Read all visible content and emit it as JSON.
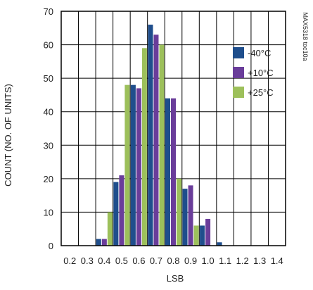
{
  "chart_data": {
    "type": "bar",
    "title": "",
    "xlabel": "LSB",
    "ylabel": "COUNT (NO. OF UNITS)",
    "reference_label": "MAX5318 toc10a",
    "ylim": [
      0,
      70
    ],
    "yticks": [
      0,
      10,
      20,
      30,
      40,
      50,
      60,
      70
    ],
    "categories": [
      "0.2",
      "0.3",
      "0.4",
      "0.5",
      "0.6",
      "0.7",
      "0.8",
      "0.9",
      "1.0",
      "1.1",
      "1.2",
      "1.3",
      "1.4"
    ],
    "grid": true,
    "legend_position": "right",
    "series": [
      {
        "name": "-40°C",
        "color": "#1f4e8c",
        "values": [
          0,
          0,
          2,
          19,
          48,
          66,
          44,
          17,
          6,
          1,
          0,
          0,
          0
        ]
      },
      {
        "name": "+10°C",
        "color": "#6a3d9a",
        "values": [
          0,
          0,
          2,
          21,
          47,
          63,
          44,
          18,
          8,
          0,
          0,
          0,
          0
        ]
      },
      {
        "name": "+25°C",
        "color": "#9dc05b",
        "values": [
          0,
          0,
          10,
          48,
          59,
          60,
          20,
          6,
          0,
          0,
          0,
          0,
          0
        ]
      }
    ]
  }
}
